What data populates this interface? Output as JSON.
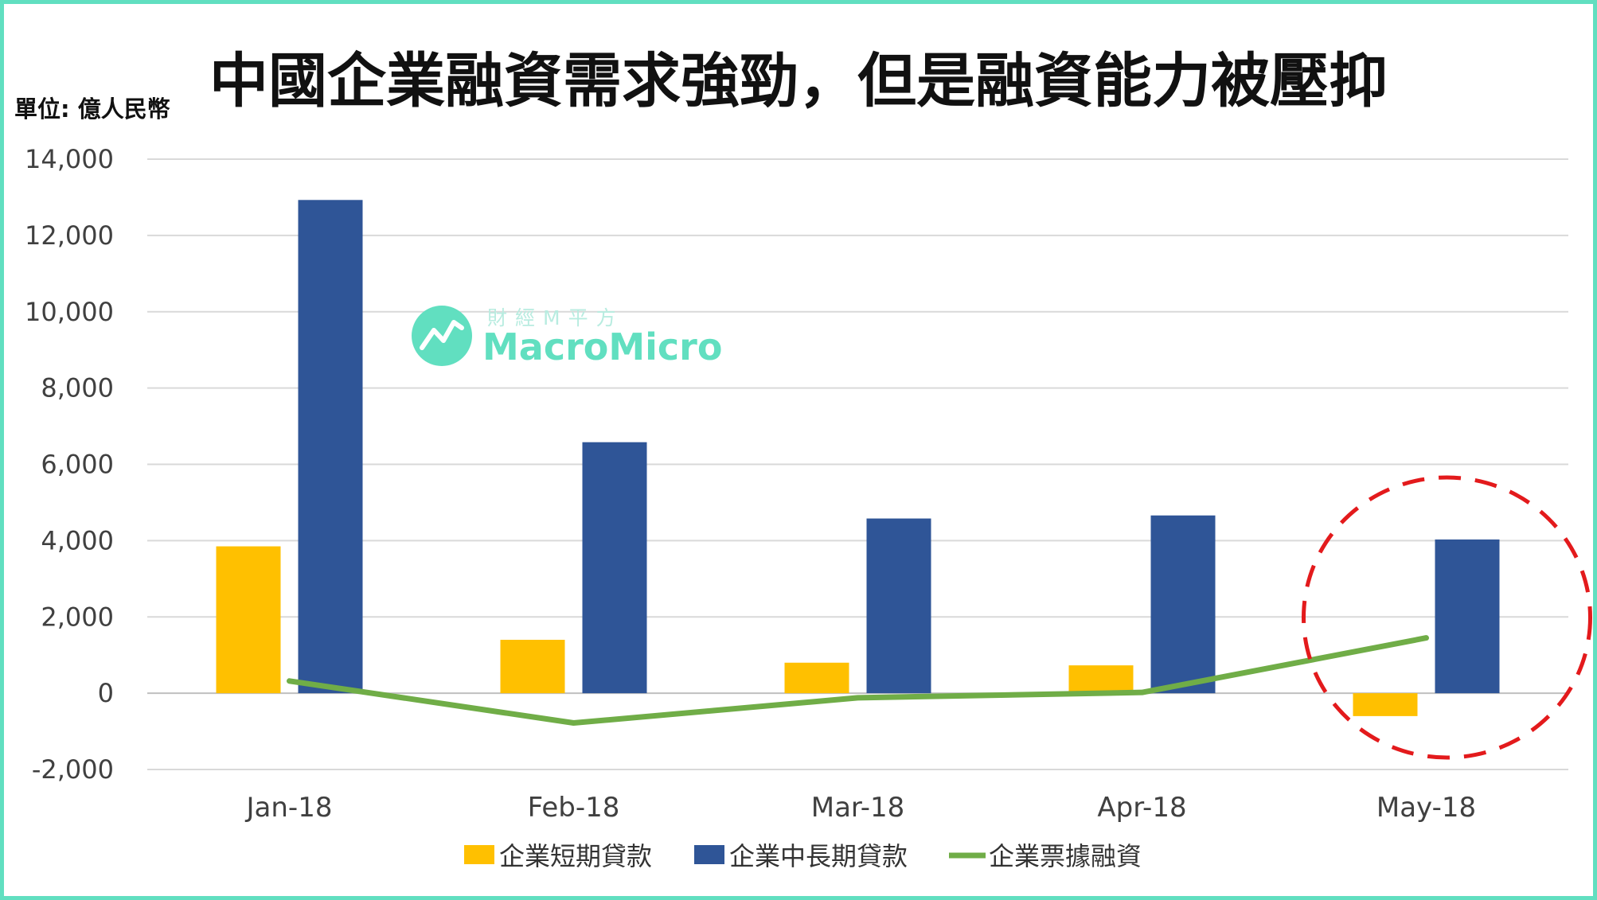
{
  "chart_data": {
    "type": "bar",
    "title": "中國企業融資需求強勁，但是融資能力被壓抑",
    "ylabel": "單位: 億人民幣",
    "ylim": [
      -2000,
      14000
    ],
    "yticks": [
      -2000,
      0,
      2000,
      4000,
      6000,
      8000,
      10000,
      12000,
      14000
    ],
    "ytick_labels": [
      "-2,000",
      "0",
      "2,000",
      "4,000",
      "6,000",
      "8,000",
      "10,000",
      "12,000",
      "14,000"
    ],
    "grid": true,
    "legend_position": "bottom",
    "categories": [
      "Jan-18",
      "Feb-18",
      "Mar-18",
      "Apr-18",
      "May-18"
    ],
    "series": [
      {
        "name": "企業短期貸款",
        "kind": "bar",
        "color": "#ffc000",
        "values": [
          3850,
          1400,
          800,
          730,
          -600
        ]
      },
      {
        "name": "企業中長期貸款",
        "kind": "bar",
        "color": "#2f5597",
        "values": [
          12930,
          6580,
          4580,
          4660,
          4030
        ]
      },
      {
        "name": "企業票據融資",
        "kind": "line",
        "color": "#70ad47",
        "values": [
          320,
          -780,
          -120,
          20,
          1450
        ]
      }
    ],
    "annotation": {
      "shape": "dashed-circle",
      "color": "#e31a1c",
      "category": "May-18"
    }
  },
  "watermark": {
    "small_text": "財經M平方",
    "brand_text": "MacroMicro",
    "icon": "chart-trend-icon"
  }
}
